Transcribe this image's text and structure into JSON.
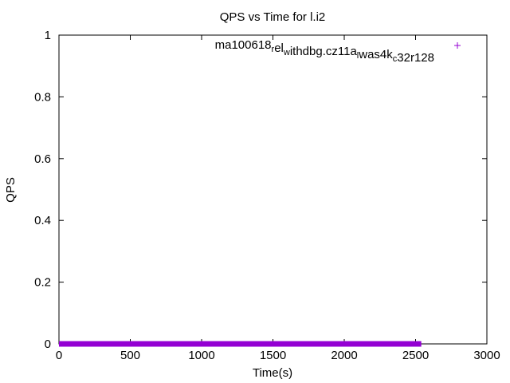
{
  "chart_data": {
    "type": "scatter",
    "title": "QPS vs Time for l.i2",
    "xlabel": "Time(s)",
    "ylabel": "QPS",
    "xlim": [
      0,
      3000
    ],
    "ylim": [
      0,
      1
    ],
    "x_ticks": [
      0,
      500,
      1000,
      1500,
      2000,
      2500,
      3000
    ],
    "x_tick_labels": [
      "0",
      "500",
      "1000",
      "1500",
      "2000",
      "2500",
      "3000"
    ],
    "y_ticks": [
      0,
      0.2,
      0.4,
      0.6,
      0.8,
      1
    ],
    "y_tick_labels": [
      "0",
      "0.2",
      "0.4",
      "0.6",
      "0.8",
      "1"
    ],
    "grid": false,
    "legend_position": "top-right",
    "series": [
      {
        "name_parts": [
          {
            "text": "ma100618",
            "sub": false
          },
          {
            "text": "r",
            "sub": true
          },
          {
            "text": "el",
            "sub": false
          },
          {
            "text": "w",
            "sub": true
          },
          {
            "text": "ithdbg.cz11a",
            "sub": false
          },
          {
            "text": "l",
            "sub": true
          },
          {
            "text": "was4k",
            "sub": false
          },
          {
            "text": "c",
            "sub": true
          },
          {
            "text": "32r128",
            "sub": false
          }
        ],
        "color": "#9400d3",
        "marker": "plus",
        "x_range": [
          0,
          2540
        ],
        "y_value": 0
      }
    ]
  }
}
